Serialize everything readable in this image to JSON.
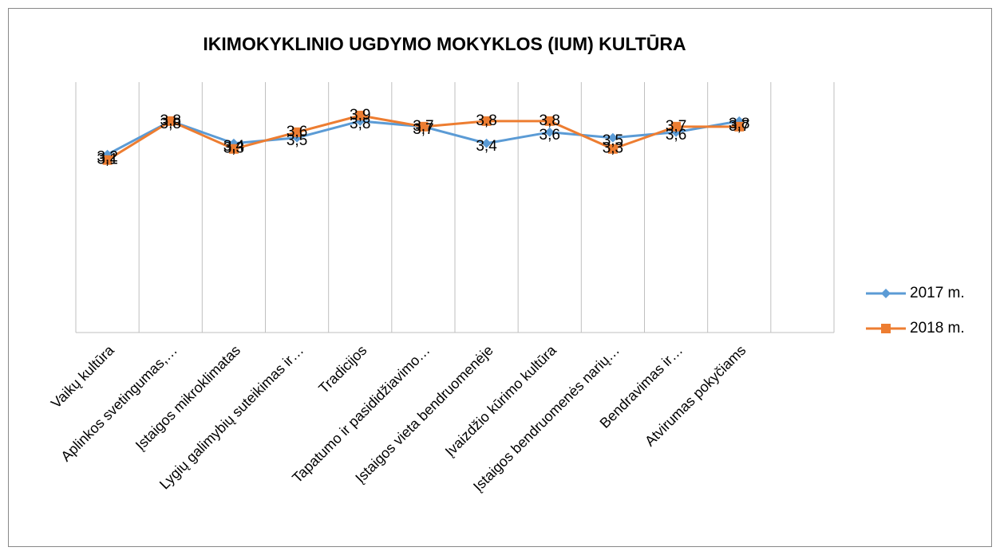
{
  "chart_data": {
    "type": "line",
    "title": "IKIMOKYKLINIO UGDYMO MOKYKLOS (IUM) KULTŪRA",
    "categories": [
      "Vaikų kultūra",
      "Aplinkos svetingumas,…",
      "Įstaigos mikroklimatas",
      "Lygių galimybių suteikimas ir…",
      "Tradicijos",
      "Tapatumo ir pasididžiavimo…",
      "Įstaigos vieta bendruomenėje",
      "Įvaizdžio kūrimo kultūra",
      "Įstaigos bendruomenės narių…",
      "Bendravimas ir…",
      "Atvirumas pokyčiams",
      null
    ],
    "series": [
      {
        "name": "2017 m.",
        "color": "#5b9bd5",
        "marker": "diamond",
        "values": [
          3.2,
          3.8,
          3.4,
          3.5,
          3.8,
          3.7,
          3.4,
          3.6,
          3.5,
          3.6,
          3.8,
          null
        ],
        "value_labels": [
          "3,2",
          "3,8",
          "3,4",
          "3,5",
          "3,8",
          "3,7",
          "3,4",
          "3,6",
          "3,5",
          "3,6",
          "3,8",
          null
        ]
      },
      {
        "name": "2018 m.",
        "color": "#ed7d31",
        "marker": "square",
        "values": [
          3.1,
          3.8,
          3.3,
          3.6,
          3.9,
          3.7,
          3.8,
          3.8,
          3.3,
          3.7,
          3.7,
          null
        ],
        "value_labels": [
          "3,1",
          "3,8",
          "3,3",
          "3,6",
          "3,9",
          "3,7",
          "3,8",
          "3,8",
          "3,3",
          "3,7",
          "3,7",
          null
        ]
      }
    ],
    "ylim": [
      0,
      4.5
    ],
    "grid": true,
    "legend": "right"
  }
}
